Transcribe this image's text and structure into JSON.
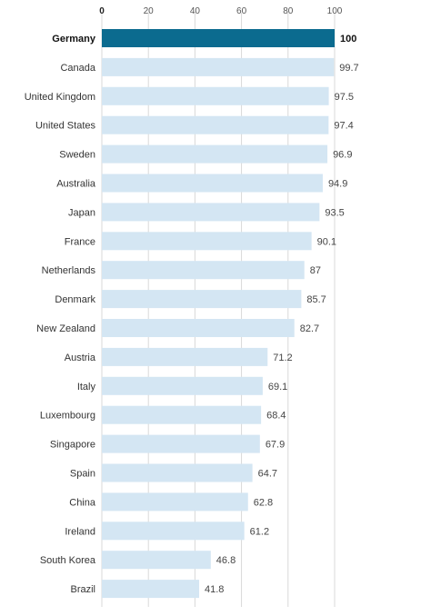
{
  "chart_data": {
    "type": "bar",
    "orientation": "horizontal",
    "xlim": [
      0,
      100
    ],
    "ticks": [
      0,
      20,
      40,
      60,
      80,
      100
    ],
    "grid": true,
    "highlight_category": "Germany",
    "colors": {
      "bar": "#d4e6f3",
      "highlight_bar": "#0b6b8f",
      "grid": "#d9d9d9"
    },
    "categories": [
      "Germany",
      "Canada",
      "United Kingdom",
      "United States",
      "Sweden",
      "Australia",
      "Japan",
      "France",
      "Netherlands",
      "Denmark",
      "New Zealand",
      "Austria",
      "Italy",
      "Luxembourg",
      "Singapore",
      "Spain",
      "China",
      "Ireland",
      "South Korea",
      "Brazil"
    ],
    "values": [
      100,
      99.7,
      97.5,
      97.4,
      96.9,
      94.9,
      93.5,
      90.1,
      87,
      85.7,
      82.7,
      71.2,
      69.1,
      68.4,
      67.9,
      64.7,
      62.8,
      61.2,
      46.8,
      41.8
    ]
  }
}
